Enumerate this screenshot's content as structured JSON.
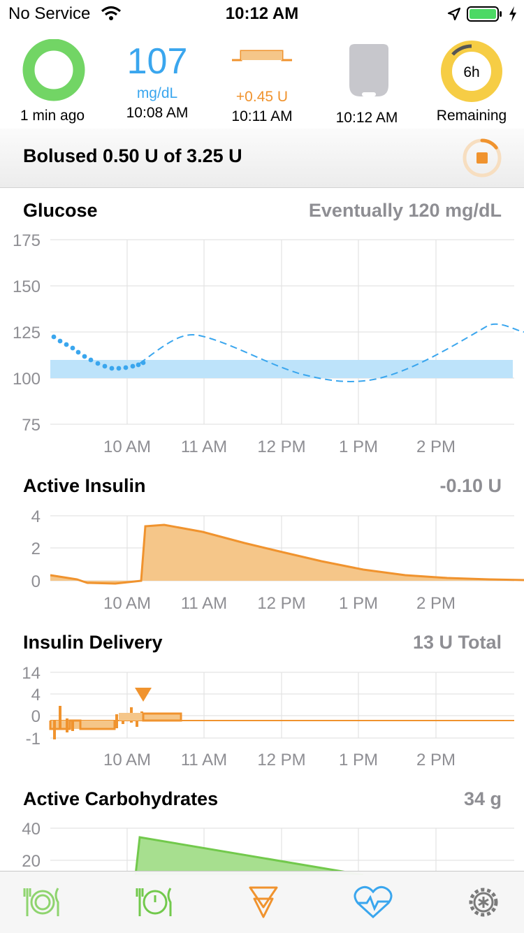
{
  "status_bar": {
    "carrier": "No Service",
    "time": "10:12 AM"
  },
  "hud": {
    "loop_ago": "1 min ago",
    "glucose_value": "107",
    "glucose_unit": "mg/dL",
    "glucose_time": "10:08 AM",
    "basal_rate": "+0.45 U",
    "basal_time": "10:11 AM",
    "pod_time": "10:12 AM",
    "remaining_value": "6h",
    "remaining_label": "Remaining"
  },
  "bolus_banner": {
    "text": "Bolused 0.50 U of 3.25 U",
    "progress": 0.15
  },
  "glucose": {
    "title": "Glucose",
    "value": "Eventually 120 mg/dL",
    "y_ticks": [
      "175",
      "150",
      "125",
      "100",
      "75"
    ],
    "target_range": [
      100,
      110
    ]
  },
  "active_insulin": {
    "title": "Active Insulin",
    "value": "-0.10 U",
    "y_ticks": [
      "4",
      "2",
      "0"
    ]
  },
  "insulin_delivery": {
    "title": "Insulin Delivery",
    "value": "13 U Total",
    "y_ticks": [
      "14",
      "4",
      "0",
      "-1"
    ]
  },
  "active_carbs": {
    "title": "Active Carbohydrates",
    "value": "34 g",
    "y_ticks": [
      "40",
      "20"
    ]
  },
  "x_ticks": [
    "10 AM",
    "11 AM",
    "12 PM",
    "1 PM",
    "2 PM"
  ],
  "colors": {
    "glucose": "#3aa6ee",
    "insulin": "#f0932e",
    "carbs": "#72c94c",
    "target": "#bde3fa"
  },
  "tab_bar": {
    "items": [
      "carbs-icon",
      "pre-meal-icon",
      "bolus-icon",
      "health-icon",
      "settings-icon"
    ]
  }
}
